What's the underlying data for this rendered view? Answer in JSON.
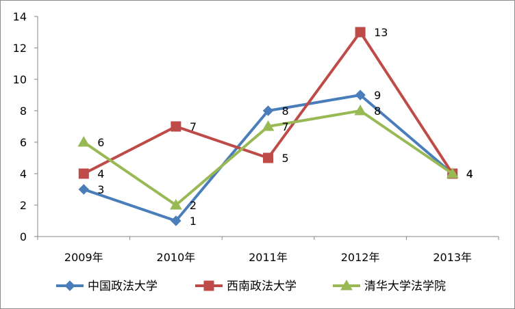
{
  "chart_data": {
    "type": "line",
    "categories": [
      "2009年",
      "2010年",
      "2011年",
      "2012年",
      "2013年"
    ],
    "ylim": [
      0,
      14
    ],
    "yticks": [
      0,
      2,
      4,
      6,
      8,
      10,
      12,
      14
    ],
    "grid": false,
    "legend_position": "bottom",
    "series": [
      {
        "name": "中国政法大学",
        "color": "#4a7ebb",
        "marker": "diamond",
        "values": [
          3,
          1,
          8,
          9,
          4
        ]
      },
      {
        "name": "西南政法大学",
        "color": "#be4b48",
        "marker": "square",
        "values": [
          4,
          7,
          5,
          13,
          4
        ]
      },
      {
        "name": "清华大学法学院",
        "color": "#98b954",
        "marker": "triangle",
        "values": [
          6,
          2,
          7,
          8,
          4
        ]
      }
    ]
  }
}
